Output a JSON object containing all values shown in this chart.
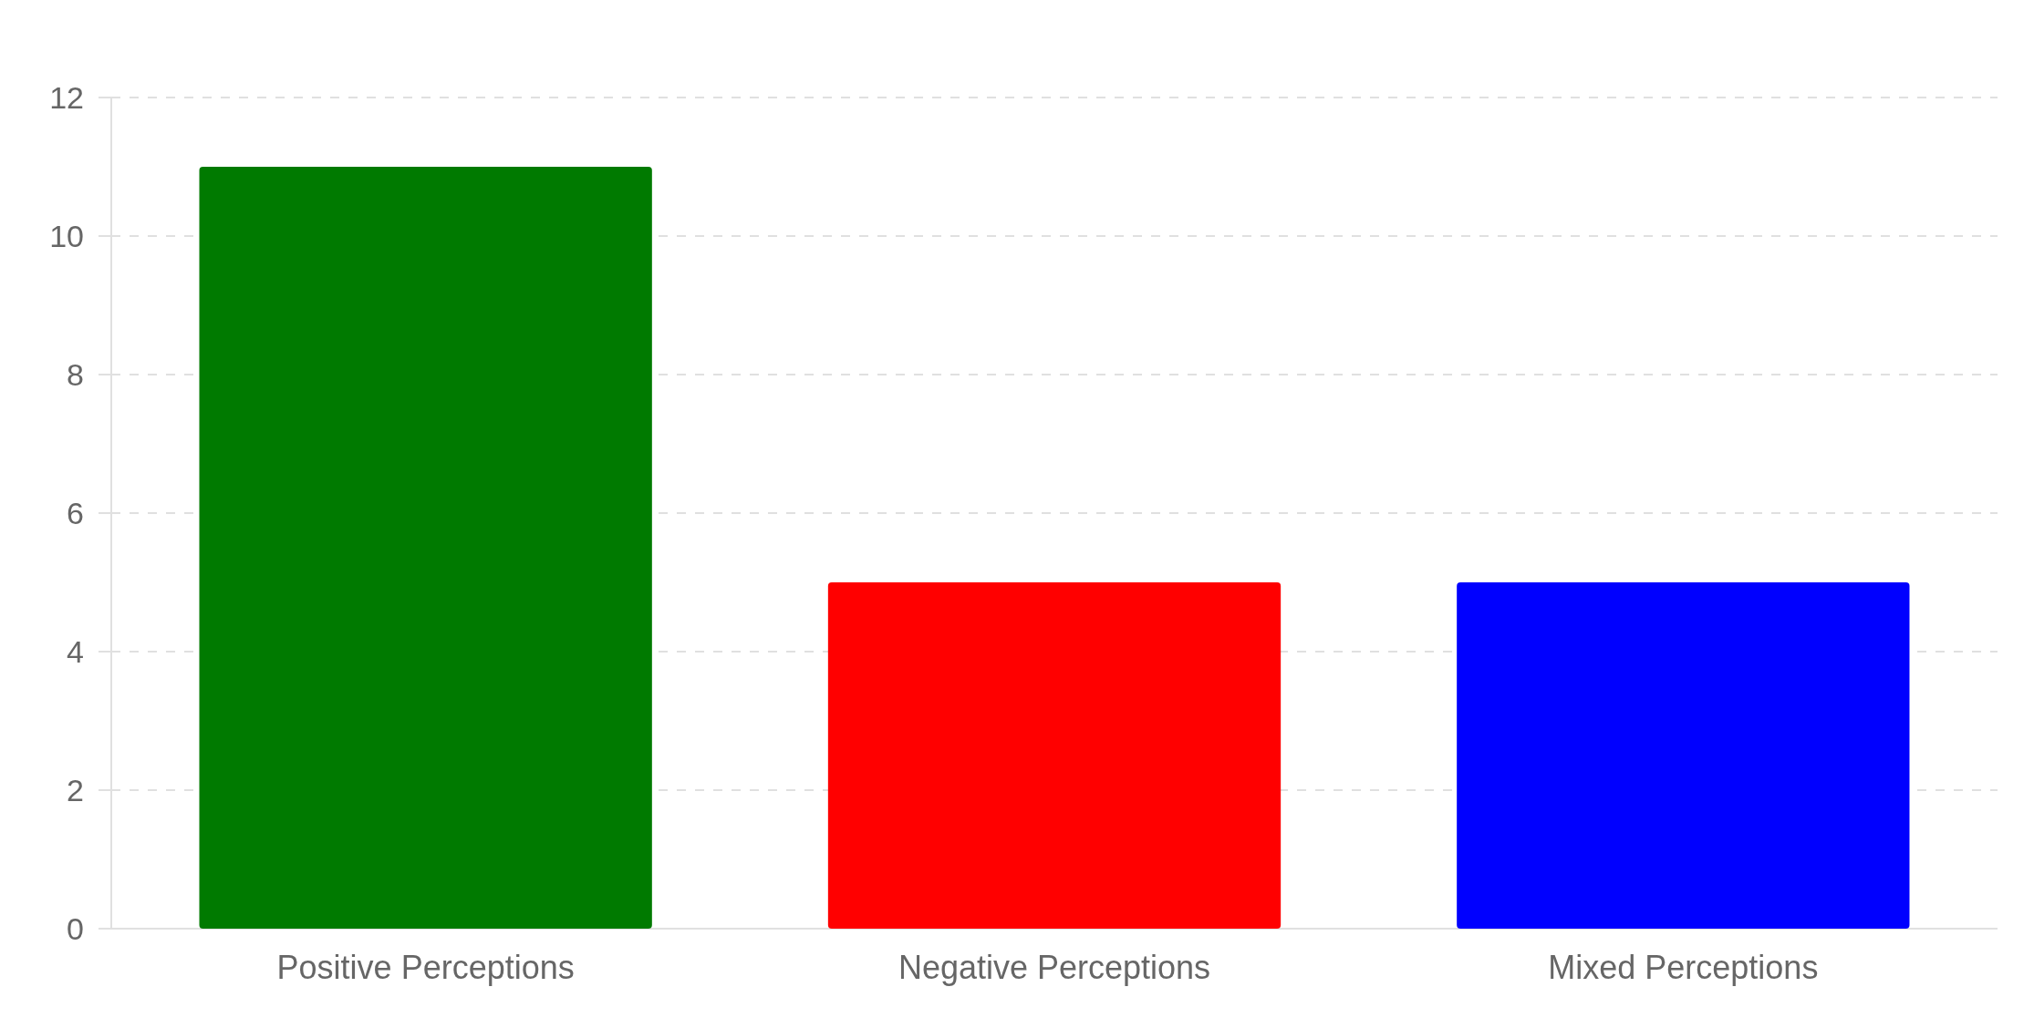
{
  "chart_data": {
    "type": "bar",
    "categories": [
      "Positive Perceptions",
      "Negative Perceptions",
      "Mixed Perceptions"
    ],
    "values": [
      11,
      5,
      5
    ],
    "colors": [
      "#007a00",
      "#ff0000",
      "#0000ff"
    ],
    "ylim": [
      0,
      12
    ],
    "yticks": [
      0,
      2,
      4,
      6,
      8,
      10,
      12
    ],
    "grid": "y"
  }
}
